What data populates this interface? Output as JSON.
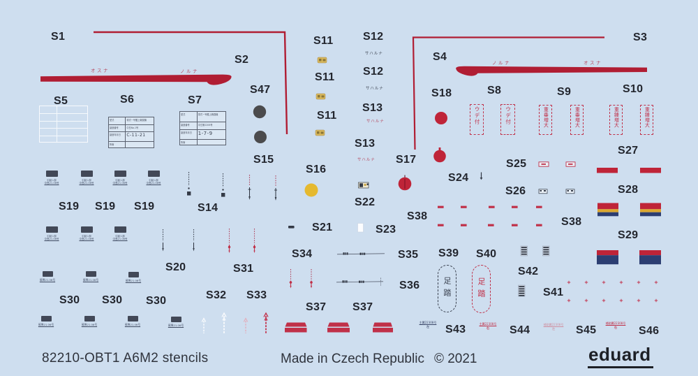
{
  "sheet": {
    "footer": {
      "product": "82210-OBT1 A6M2 stencils",
      "made_in": "Made in Czech Republic",
      "copyright": "© 2021",
      "brand": "eduard"
    }
  },
  "colors": {
    "bg": "#cedeef",
    "red": "#b01d33",
    "flagred": "#bf2438",
    "red3": "#c03048",
    "jpred": "#b5455c",
    "pink": "#e2aebc",
    "palered": "#cf8fa0",
    "gold": "#d9b95c",
    "yellow": "#e5b92f",
    "flagyellow": "#dca72f",
    "navy": "#2c3e72",
    "dark": "#4b4b4d",
    "darker": "#343a46",
    "label": "#23262e"
  },
  "labels": [
    "S1",
    "S2",
    "S47",
    "S5",
    "S6",
    "S7",
    "S15",
    "S11",
    "S11",
    "S11",
    "S12",
    "S12",
    "S13",
    "S13",
    "S3",
    "S4",
    "S18",
    "S8",
    "S9",
    "S10",
    "S27",
    "S25",
    "S24",
    "S26",
    "S28",
    "S29",
    "S38",
    "S38",
    "S16",
    "S17",
    "S22",
    "S21",
    "S23",
    "S14",
    "S19",
    "S19",
    "S19",
    "S20",
    "S31",
    "S32",
    "S33",
    "S30",
    "S30",
    "S30",
    "S34",
    "S35",
    "S36",
    "S37",
    "S37",
    "S39",
    "S40",
    "S42",
    "S41",
    "S43",
    "S44",
    "S45",
    "S46"
  ],
  "texts": {
    "osuna": "オスナ",
    "noruna": "ノルナ",
    "sawaruna": "サハルナ",
    "s8_box": "ウデ付",
    "s9_box": "重垂増大",
    "s10_box": "重錘増大",
    "s39_pill": "足踏",
    "s40_pill": "足踏"
  },
  "tables": {
    "s6": {
      "rows": [
        [
          "型式",
          "零式一号艦上戦闘機"
        ],
        [
          "製造番号",
          "中島No.1号"
        ],
        [
          "製造年月日",
          "C-11-21"
        ],
        [
          "所管",
          ""
        ]
      ]
    },
    "s7": {
      "rows": [
        [
          "型式",
          "零式一号艦上戦闘機"
        ],
        [
          "製造番号",
          "中島第2206号"
        ],
        [
          "製造年月日",
          "1-7-9"
        ],
        [
          "所管",
          ""
        ]
      ]
    }
  },
  "micro": {
    "s19_line1": "引起シ部",
    "s19_line2": "中島21.06号",
    "s30_line": "昇降21.06号",
    "s43_line1": "主翼22308号",
    "s43_line2": "左",
    "s44_line1": "主翼22308号",
    "s44_line2": "右",
    "s45_line1": "補助翼22308号",
    "s45_line2": "左",
    "s46_line1": "補助翼22308号",
    "s46_line2": "右"
  }
}
